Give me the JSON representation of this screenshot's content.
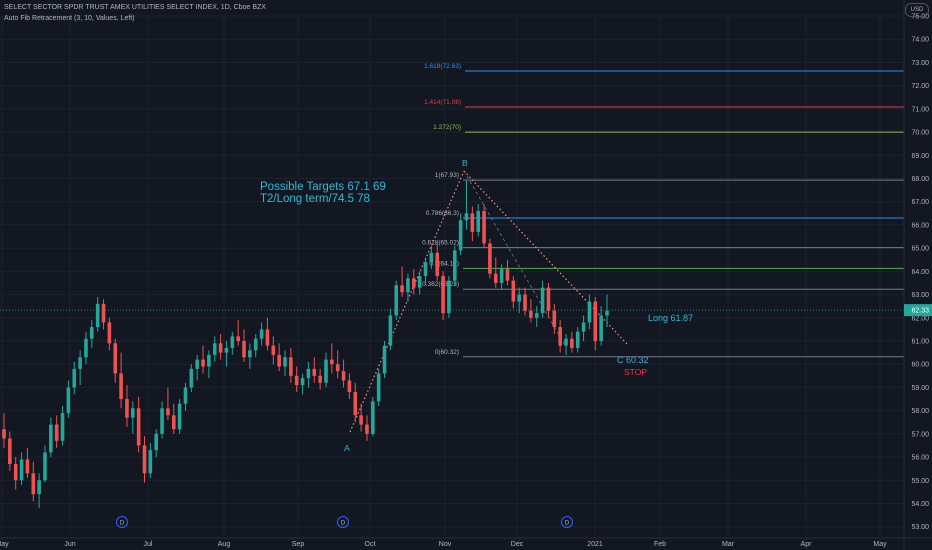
{
  "header": {
    "title": "SELECT SECTOR SPDR TRUST AMEX UTILITIES SELECT INDEX, 1D, Cboe BZX",
    "indicator": "Auto Fib Retracement (3, 10, Values, Left)",
    "currency": "USD"
  },
  "colors": {
    "background": "#131722",
    "grid": "#1e2230",
    "up": "#26a69a",
    "down": "#ef5350",
    "annotation": "#2fb8d6",
    "stop": "#f23645",
    "dotted_trend": "#f7927a"
  },
  "chart_data": {
    "type": "candlestick",
    "ylim": [
      52.6,
      75.0
    ],
    "y_ticks": [
      "53.00",
      "54.00",
      "55.00",
      "56.00",
      "57.00",
      "58.00",
      "59.00",
      "60.00",
      "61.00",
      "62.00",
      "63.00",
      "64.00",
      "65.00",
      "66.00",
      "67.00",
      "68.00",
      "69.00",
      "70.00",
      "71.00",
      "72.00",
      "73.00",
      "74.00",
      "75.00"
    ],
    "x_labels": [
      "May",
      "Jun",
      "Jul",
      "Aug",
      "Sep",
      "Oct",
      "Nov",
      "Dec",
      "2021",
      "Feb",
      "Mar",
      "Apr",
      "May"
    ],
    "last_price": "62.33",
    "dividend_marker": "D",
    "fib_levels": [
      {
        "label": "1.618(72.63)",
        "value": 72.63,
        "color": "#2196f3"
      },
      {
        "label": "1.414(71.08)",
        "value": 71.08,
        "color": "#f23645"
      },
      {
        "label": "1.272(70)",
        "value": 70.0,
        "color": "#8bc34a"
      },
      {
        "label": "1(67.93)",
        "value": 67.93,
        "color": "#787b86"
      },
      {
        "label": "0.786(66.3)",
        "value": 66.3,
        "color": "#2196f3"
      },
      {
        "label": "0.618(65.02)",
        "value": 65.02,
        "color": "#26a69a"
      },
      {
        "label": "0.5(64.13)",
        "value": 64.13,
        "color": "#4caf50"
      },
      {
        "label": "0.382(63.23)",
        "value": 63.23,
        "color": "#787b86"
      },
      {
        "label": "0(60.32)",
        "value": 60.32,
        "color": "#787b86"
      }
    ],
    "annotations": {
      "targets_line1": "Possible Targets   67.1   69",
      "targets_line2": "T2/Long term/74.5   78",
      "long_label": "Long 61.87",
      "c_label": "C 60.32",
      "stop_label": "STOP",
      "point_a": "A",
      "point_b": "B"
    },
    "candles": [
      {
        "o": 57.2,
        "h": 57.9,
        "l": 56.4,
        "c": 56.8
      },
      {
        "o": 56.8,
        "h": 57.1,
        "l": 55.4,
        "c": 55.7
      },
      {
        "o": 55.7,
        "h": 56.0,
        "l": 54.6,
        "c": 55.0
      },
      {
        "o": 55.0,
        "h": 56.2,
        "l": 54.8,
        "c": 55.9
      },
      {
        "o": 55.9,
        "h": 56.4,
        "l": 55.1,
        "c": 55.3
      },
      {
        "o": 55.3,
        "h": 55.8,
        "l": 54.1,
        "c": 54.4
      },
      {
        "o": 54.4,
        "h": 55.3,
        "l": 53.8,
        "c": 55.0
      },
      {
        "o": 55.0,
        "h": 56.5,
        "l": 54.9,
        "c": 56.2
      },
      {
        "o": 56.2,
        "h": 57.7,
        "l": 56.0,
        "c": 57.4
      },
      {
        "o": 57.4,
        "h": 57.8,
        "l": 56.4,
        "c": 56.7
      },
      {
        "o": 56.7,
        "h": 58.2,
        "l": 56.5,
        "c": 57.9
      },
      {
        "o": 57.9,
        "h": 59.3,
        "l": 57.7,
        "c": 59.0
      },
      {
        "o": 59.0,
        "h": 60.1,
        "l": 58.7,
        "c": 59.8
      },
      {
        "o": 59.8,
        "h": 60.6,
        "l": 59.1,
        "c": 60.3
      },
      {
        "o": 60.3,
        "h": 61.4,
        "l": 60.0,
        "c": 61.1
      },
      {
        "o": 61.1,
        "h": 61.9,
        "l": 60.7,
        "c": 61.6
      },
      {
        "o": 61.6,
        "h": 62.9,
        "l": 61.4,
        "c": 62.6
      },
      {
        "o": 62.6,
        "h": 62.8,
        "l": 61.5,
        "c": 61.8
      },
      {
        "o": 61.8,
        "h": 62.0,
        "l": 60.6,
        "c": 60.9
      },
      {
        "o": 60.9,
        "h": 61.1,
        "l": 59.2,
        "c": 59.6
      },
      {
        "o": 59.6,
        "h": 60.5,
        "l": 58.1,
        "c": 58.5
      },
      {
        "o": 58.5,
        "h": 59.1,
        "l": 57.3,
        "c": 57.7
      },
      {
        "o": 57.7,
        "h": 58.4,
        "l": 57.0,
        "c": 58.1
      },
      {
        "o": 58.1,
        "h": 58.6,
        "l": 56.2,
        "c": 56.5
      },
      {
        "o": 56.5,
        "h": 56.9,
        "l": 54.9,
        "c": 55.3
      },
      {
        "o": 55.3,
        "h": 56.6,
        "l": 55.1,
        "c": 56.3
      },
      {
        "o": 56.3,
        "h": 57.2,
        "l": 56.0,
        "c": 57.0
      },
      {
        "o": 57.0,
        "h": 58.4,
        "l": 56.8,
        "c": 58.1
      },
      {
        "o": 58.1,
        "h": 59.0,
        "l": 57.6,
        "c": 57.8
      },
      {
        "o": 57.8,
        "h": 58.3,
        "l": 57.0,
        "c": 57.2
      },
      {
        "o": 57.2,
        "h": 58.5,
        "l": 57.0,
        "c": 58.3
      },
      {
        "o": 58.3,
        "h": 59.2,
        "l": 58.0,
        "c": 59.0
      },
      {
        "o": 59.0,
        "h": 60.0,
        "l": 58.8,
        "c": 59.8
      },
      {
        "o": 59.8,
        "h": 60.4,
        "l": 59.3,
        "c": 60.2
      },
      {
        "o": 60.2,
        "h": 60.8,
        "l": 59.6,
        "c": 59.9
      },
      {
        "o": 59.9,
        "h": 60.6,
        "l": 59.4,
        "c": 60.4
      },
      {
        "o": 60.4,
        "h": 61.2,
        "l": 60.1,
        "c": 60.9
      },
      {
        "o": 60.9,
        "h": 61.3,
        "l": 60.2,
        "c": 60.5
      },
      {
        "o": 60.5,
        "h": 61.0,
        "l": 59.9,
        "c": 60.7
      },
      {
        "o": 60.7,
        "h": 61.4,
        "l": 60.4,
        "c": 61.2
      },
      {
        "o": 61.2,
        "h": 61.9,
        "l": 60.8,
        "c": 61.0
      },
      {
        "o": 61.0,
        "h": 61.5,
        "l": 60.1,
        "c": 60.3
      },
      {
        "o": 60.3,
        "h": 60.9,
        "l": 59.8,
        "c": 60.6
      },
      {
        "o": 60.6,
        "h": 61.3,
        "l": 60.3,
        "c": 61.1
      },
      {
        "o": 61.1,
        "h": 61.8,
        "l": 60.8,
        "c": 61.5
      },
      {
        "o": 61.5,
        "h": 62.0,
        "l": 60.6,
        "c": 60.8
      },
      {
        "o": 60.8,
        "h": 61.2,
        "l": 60.0,
        "c": 60.4
      },
      {
        "o": 60.4,
        "h": 60.9,
        "l": 59.7,
        "c": 59.9
      },
      {
        "o": 59.9,
        "h": 60.6,
        "l": 59.5,
        "c": 60.3
      },
      {
        "o": 60.3,
        "h": 60.7,
        "l": 59.2,
        "c": 59.5
      },
      {
        "o": 59.5,
        "h": 59.9,
        "l": 58.8,
        "c": 59.1
      },
      {
        "o": 59.1,
        "h": 59.6,
        "l": 58.7,
        "c": 59.4
      },
      {
        "o": 59.4,
        "h": 60.1,
        "l": 59.0,
        "c": 59.8
      },
      {
        "o": 59.8,
        "h": 60.3,
        "l": 59.2,
        "c": 59.5
      },
      {
        "o": 59.5,
        "h": 59.8,
        "l": 58.9,
        "c": 59.2
      },
      {
        "o": 59.2,
        "h": 60.5,
        "l": 59.0,
        "c": 60.2
      },
      {
        "o": 60.2,
        "h": 60.9,
        "l": 59.6,
        "c": 60.0
      },
      {
        "o": 60.0,
        "h": 60.6,
        "l": 59.4,
        "c": 59.7
      },
      {
        "o": 59.7,
        "h": 60.2,
        "l": 59.0,
        "c": 59.3
      },
      {
        "o": 59.3,
        "h": 59.6,
        "l": 58.5,
        "c": 58.8
      },
      {
        "o": 58.8,
        "h": 59.2,
        "l": 57.5,
        "c": 57.8
      },
      {
        "o": 57.8,
        "h": 58.3,
        "l": 57.1,
        "c": 57.4
      },
      {
        "o": 57.4,
        "h": 57.8,
        "l": 56.7,
        "c": 57.0
      },
      {
        "o": 57.0,
        "h": 58.6,
        "l": 56.9,
        "c": 58.4
      },
      {
        "o": 58.4,
        "h": 59.8,
        "l": 58.2,
        "c": 59.6
      },
      {
        "o": 59.6,
        "h": 61.0,
        "l": 59.4,
        "c": 60.8
      },
      {
        "o": 60.8,
        "h": 62.4,
        "l": 60.6,
        "c": 62.1
      },
      {
        "o": 62.1,
        "h": 63.6,
        "l": 61.9,
        "c": 63.4
      },
      {
        "o": 63.4,
        "h": 64.2,
        "l": 62.9,
        "c": 63.1
      },
      {
        "o": 63.1,
        "h": 63.9,
        "l": 62.7,
        "c": 63.7
      },
      {
        "o": 63.7,
        "h": 64.1,
        "l": 63.0,
        "c": 63.3
      },
      {
        "o": 63.3,
        "h": 64.0,
        "l": 63.0,
        "c": 63.8
      },
      {
        "o": 63.8,
        "h": 64.6,
        "l": 63.4,
        "c": 64.4
      },
      {
        "o": 64.4,
        "h": 65.1,
        "l": 64.1,
        "c": 64.8
      },
      {
        "o": 64.8,
        "h": 65.2,
        "l": 63.6,
        "c": 63.8
      },
      {
        "o": 63.8,
        "h": 64.0,
        "l": 61.9,
        "c": 62.2
      },
      {
        "o": 62.2,
        "h": 63.8,
        "l": 62.0,
        "c": 63.6
      },
      {
        "o": 63.6,
        "h": 65.1,
        "l": 63.4,
        "c": 64.9
      },
      {
        "o": 64.9,
        "h": 66.5,
        "l": 64.7,
        "c": 66.2
      },
      {
        "o": 66.2,
        "h": 67.9,
        "l": 65.8,
        "c": 66.5
      },
      {
        "o": 66.5,
        "h": 66.8,
        "l": 65.3,
        "c": 65.7
      },
      {
        "o": 65.7,
        "h": 66.9,
        "l": 65.5,
        "c": 66.6
      },
      {
        "o": 66.6,
        "h": 66.9,
        "l": 65.0,
        "c": 65.2
      },
      {
        "o": 65.2,
        "h": 65.4,
        "l": 63.7,
        "c": 63.9
      },
      {
        "o": 63.9,
        "h": 64.6,
        "l": 63.3,
        "c": 63.5
      },
      {
        "o": 63.5,
        "h": 64.3,
        "l": 63.2,
        "c": 64.1
      },
      {
        "o": 64.1,
        "h": 64.5,
        "l": 63.4,
        "c": 63.6
      },
      {
        "o": 63.6,
        "h": 63.8,
        "l": 62.4,
        "c": 62.7
      },
      {
        "o": 62.7,
        "h": 63.3,
        "l": 62.2,
        "c": 63.0
      },
      {
        "o": 63.0,
        "h": 63.3,
        "l": 62.1,
        "c": 62.3
      },
      {
        "o": 62.3,
        "h": 62.8,
        "l": 61.8,
        "c": 62.0
      },
      {
        "o": 62.0,
        "h": 62.5,
        "l": 61.6,
        "c": 62.2
      },
      {
        "o": 62.2,
        "h": 63.6,
        "l": 62.0,
        "c": 63.3
      },
      {
        "o": 63.3,
        "h": 63.5,
        "l": 62.0,
        "c": 62.3
      },
      {
        "o": 62.3,
        "h": 62.6,
        "l": 61.3,
        "c": 61.6
      },
      {
        "o": 61.6,
        "h": 61.9,
        "l": 60.5,
        "c": 60.8
      },
      {
        "o": 60.8,
        "h": 61.3,
        "l": 60.4,
        "c": 61.1
      },
      {
        "o": 61.1,
        "h": 61.4,
        "l": 60.5,
        "c": 60.7
      },
      {
        "o": 60.7,
        "h": 61.6,
        "l": 60.5,
        "c": 61.4
      },
      {
        "o": 61.4,
        "h": 62.1,
        "l": 61.0,
        "c": 61.8
      },
      {
        "o": 61.8,
        "h": 63.0,
        "l": 61.5,
        "c": 62.7
      },
      {
        "o": 62.7,
        "h": 62.9,
        "l": 60.6,
        "c": 61.0
      },
      {
        "o": 61.0,
        "h": 62.5,
        "l": 60.8,
        "c": 62.1
      },
      {
        "o": 62.1,
        "h": 63.0,
        "l": 61.6,
        "c": 62.3
      }
    ]
  }
}
